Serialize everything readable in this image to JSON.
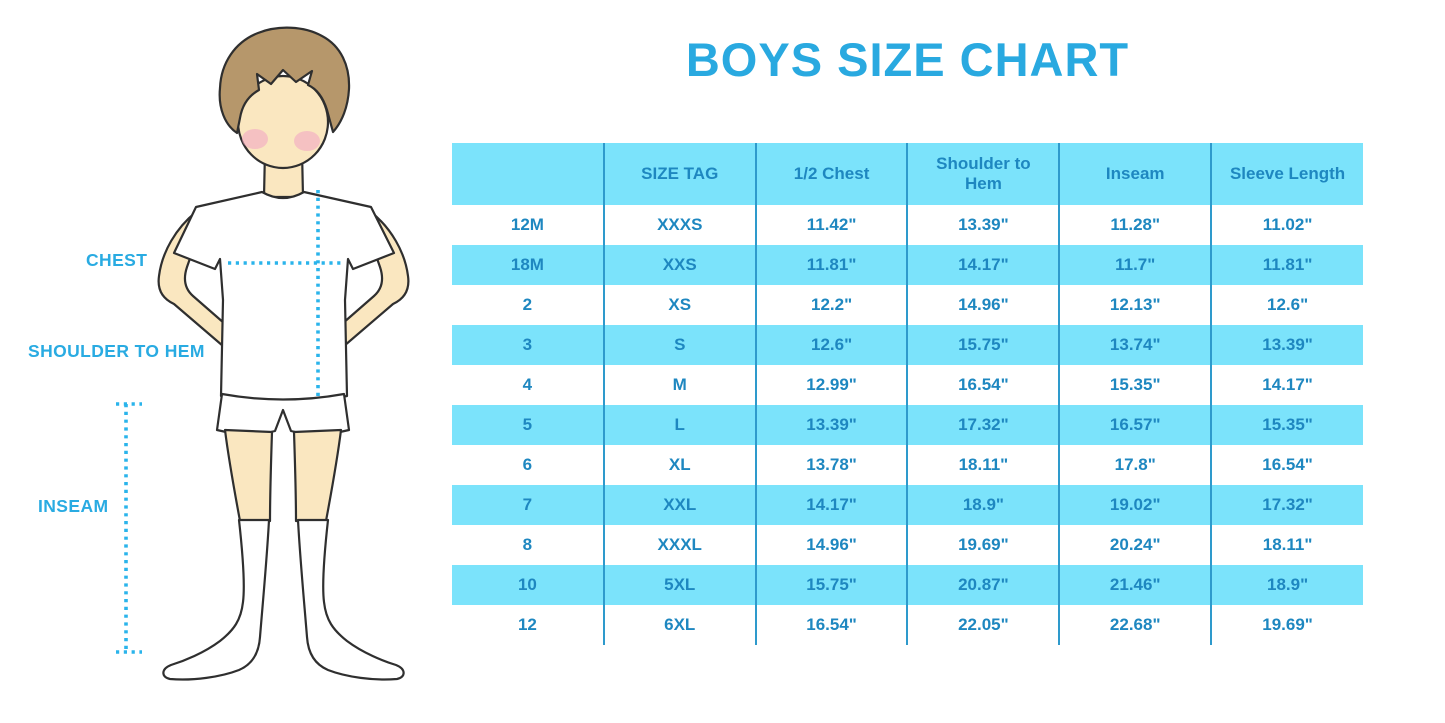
{
  "title": "BOYS SIZE CHART",
  "figure": {
    "chest_label": "CHEST",
    "shoulder_to_hem_label": "SHOULDER TO HEM",
    "inseam_label": "INSEAM"
  },
  "colors": {
    "accent_cyan": "#7BE3FB",
    "table_text_blue": "#1E87C0",
    "separator_blue": "#2E9ACC",
    "title_blue": "#29A9E0",
    "label_blue": "#29ABE2",
    "dotted_cyan": "#2AB4EB"
  },
  "chart_data": {
    "type": "table",
    "title": "BOYS SIZE CHART",
    "columns": [
      "",
      "SIZE TAG",
      "1/2 Chest",
      "Shoulder to Hem",
      "Inseam",
      "Sleeve Length"
    ],
    "rows": [
      [
        "12M",
        "XXXS",
        "11.42\"",
        "13.39\"",
        "11.28\"",
        "11.02\""
      ],
      [
        "18M",
        "XXS",
        "11.81\"",
        "14.17\"",
        "11.7\"",
        "11.81\""
      ],
      [
        "2",
        "XS",
        "12.2\"",
        "14.96\"",
        "12.13\"",
        "12.6\""
      ],
      [
        "3",
        "S",
        "12.6\"",
        "15.75\"",
        "13.74\"",
        "13.39\""
      ],
      [
        "4",
        "M",
        "12.99\"",
        "16.54\"",
        "15.35\"",
        "14.17\""
      ],
      [
        "5",
        "L",
        "13.39\"",
        "17.32\"",
        "16.57\"",
        "15.35\""
      ],
      [
        "6",
        "XL",
        "13.78\"",
        "18.11\"",
        "17.8\"",
        "16.54\""
      ],
      [
        "7",
        "XXL",
        "14.17\"",
        "18.9\"",
        "19.02\"",
        "17.32\""
      ],
      [
        "8",
        "XXXL",
        "14.96\"",
        "19.69\"",
        "20.24\"",
        "18.11\""
      ],
      [
        "10",
        "5XL",
        "15.75\"",
        "20.87\"",
        "21.46\"",
        "18.9\""
      ],
      [
        "12",
        "6XL",
        "16.54\"",
        "22.05\"",
        "22.68\"",
        "19.69\""
      ]
    ]
  }
}
